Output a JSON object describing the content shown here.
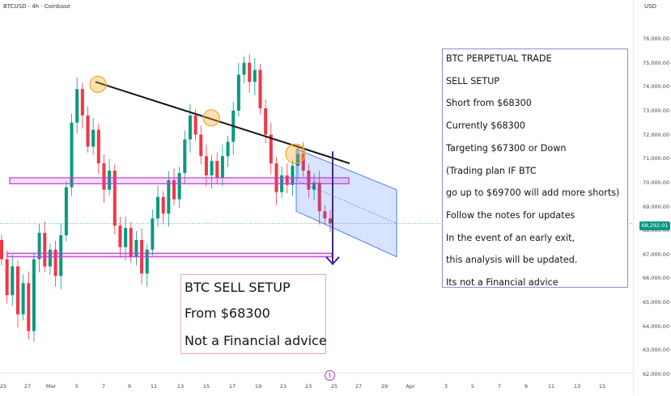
{
  "header": {
    "symbol": "BTCUSD · 4h · Coinbase",
    "currency": "USD"
  },
  "price_axis": {
    "ticks": [
      "76,000.00",
      "75,000.00",
      "74,000.00",
      "73,000.00",
      "72,000.00",
      "71,000.00",
      "70,000.00",
      "69,000.00",
      "68,000.00",
      "67,000.00",
      "66,000.00",
      "65,000.00",
      "64,000.00",
      "63,000.00",
      "62,000.00"
    ],
    "current_price": "68,292.01"
  },
  "time_axis": {
    "ticks": [
      "25",
      "27",
      "Mar",
      "5",
      "7",
      "9",
      "11",
      "13",
      "15",
      "17",
      "19",
      "21",
      "23",
      "25",
      "27",
      "29",
      "Apr",
      "3",
      "5",
      "7",
      "9",
      "11",
      "13",
      "15"
    ]
  },
  "sell_box": {
    "line1": "BTC SELL SETUP",
    "line2": "From $68300",
    "line3": "Not a Financial advice"
  },
  "trade_box": {
    "lines": [
      "BTC PERPETUAL TRADE",
      "SELL SETUP",
      "Short from $68300",
      "Currently $68300",
      "Targeting $67300 or Down",
      "(Trading plan IF BTC",
      "go up to $69700 will add more shorts)",
      "Follow the notes for updates",
      "In the event of an early exit,",
      "this analysis will be updated.",
      "Its not a Financial advice"
    ]
  },
  "colors": {
    "up": "#089981",
    "down": "#f23645",
    "zone": "#c23bd4",
    "channel": "#2962ff",
    "circle": "#f5a623",
    "arrow": "#3b2a8c"
  },
  "chart_data": {
    "type": "candlestick",
    "symbol": "BTCUSD",
    "interval": "4h",
    "exchange": "Coinbase",
    "ylim": [
      62000,
      76500
    ],
    "current_price": 68292.01,
    "candles": [
      [
        67600,
        66800
      ],
      [
        66800,
        65300
      ],
      [
        65300,
        66500
      ],
      [
        66500,
        64500
      ],
      [
        64500,
        65800
      ],
      [
        65800,
        63800
      ],
      [
        63800,
        66800
      ],
      [
        66800,
        67900
      ],
      [
        67900,
        66500
      ],
      [
        66500,
        67200
      ],
      [
        67200,
        66100
      ],
      [
        66100,
        67800
      ],
      [
        67800,
        69800
      ],
      [
        69800,
        72500
      ],
      [
        72500,
        73900
      ],
      [
        73900,
        72800
      ],
      [
        72800,
        71500
      ],
      [
        71500,
        72200
      ],
      [
        72200,
        70800
      ],
      [
        70800,
        69700
      ],
      [
        69700,
        70500
      ],
      [
        70500,
        68200
      ],
      [
        68200,
        67300
      ],
      [
        67300,
        68100
      ],
      [
        68100,
        66900
      ],
      [
        66900,
        67600
      ],
      [
        67600,
        66200
      ],
      [
        66200,
        67200
      ],
      [
        67200,
        68500
      ],
      [
        68500,
        69400
      ],
      [
        69400,
        68700
      ],
      [
        68700,
        70100
      ],
      [
        70100,
        69300
      ],
      [
        69300,
        70400
      ],
      [
        70400,
        71800
      ],
      [
        71800,
        72800
      ],
      [
        72800,
        72000
      ],
      [
        72000,
        71100
      ],
      [
        71100,
        70300
      ],
      [
        70300,
        70900
      ],
      [
        70900,
        70200
      ],
      [
        70200,
        71100
      ],
      [
        71100,
        71700
      ],
      [
        71700,
        73000
      ],
      [
        73000,
        74500
      ],
      [
        74500,
        75000
      ],
      [
        75000,
        74200
      ],
      [
        74200,
        74700
      ],
      [
        74700,
        73100
      ],
      [
        73100,
        72000
      ],
      [
        72000,
        70800
      ],
      [
        70800,
        69600
      ],
      [
        69600,
        70300
      ],
      [
        70300,
        69900
      ],
      [
        69900,
        70700
      ],
      [
        70700,
        71200
      ],
      [
        71200,
        70500
      ],
      [
        70500,
        69700
      ],
      [
        69700,
        70000
      ],
      [
        70000,
        68800
      ],
      [
        68800,
        68500
      ],
      [
        68500,
        68292
      ]
    ],
    "annotations": {
      "resistance_trendline": {
        "from": 74200,
        "to": 70800
      },
      "touch_points": [
        74100,
        72700,
        71200
      ],
      "resistance_zone": [
        69950,
        70200
      ],
      "support_zone": [
        66900,
        67050
      ],
      "descending_channel": {
        "upper": [
          71400,
          69700
        ],
        "lower": [
          68800,
          66900
        ]
      },
      "target": 67000
    }
  }
}
